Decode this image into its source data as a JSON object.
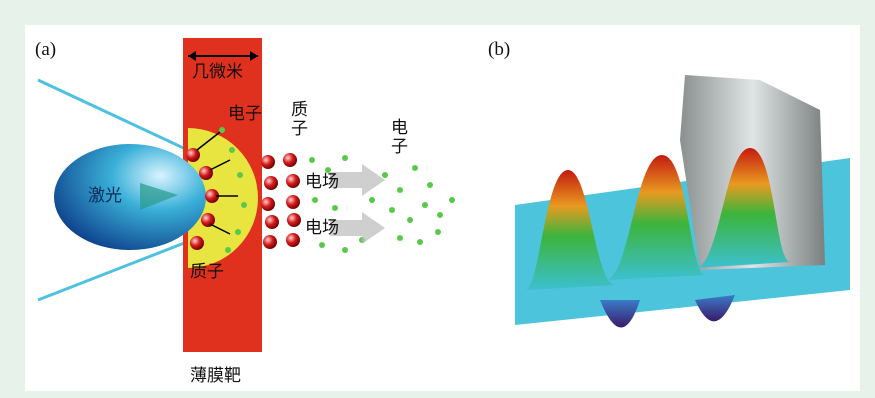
{
  "panel_a": {
    "label": "(a)",
    "width_label": "几微米",
    "electron_label": "电子",
    "proton_label_top": "质子",
    "electron_label_right": "电子",
    "laser_label": "激光",
    "field_label_1": "电场",
    "field_label_2": "电场",
    "proton_label_bottom": "质子",
    "target_label": "薄膜靶"
  },
  "panel_b": {
    "label": "(b)"
  }
}
